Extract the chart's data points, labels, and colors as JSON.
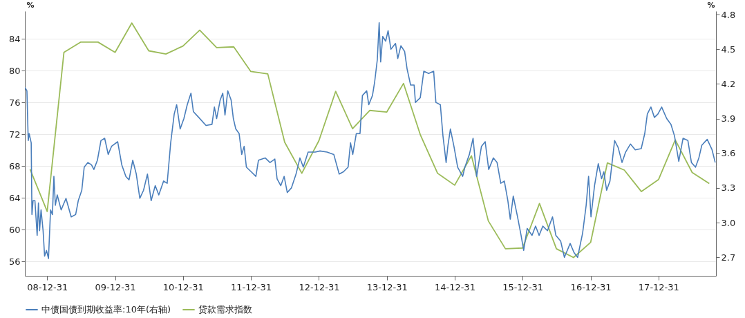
{
  "chart_data": {
    "type": "line",
    "ylabel": "%",
    "y2label": "%",
    "xlim": [
      "2008-09-02",
      "2018-11-05"
    ],
    "xticks": [
      {
        "value": "2008-12-31",
        "label": "08-12-31"
      },
      {
        "value": "2009-12-31",
        "label": "09-12-31"
      },
      {
        "value": "2010-12-31",
        "label": "10-12-31"
      },
      {
        "value": "2011-12-31",
        "label": "11-12-31"
      },
      {
        "value": "2012-12-31",
        "label": "12-12-31"
      },
      {
        "value": "2013-12-31",
        "label": "13-12-31"
      },
      {
        "value": "2014-12-31",
        "label": "14-12-31"
      },
      {
        "value": "2015-12-31",
        "label": "15-12-31"
      },
      {
        "value": "2016-12-31",
        "label": "16-12-31"
      },
      {
        "value": "2017-12-31",
        "label": "17-12-31"
      }
    ],
    "ylim": [
      54.2,
      87.5
    ],
    "yticks": [
      56,
      60,
      64,
      68,
      72,
      76,
      80,
      84
    ],
    "y2lim": [
      2.54,
      4.83
    ],
    "y2ticks": [
      2.7,
      {
        "value": 3,
        "label": "3.0"
      },
      3.3,
      3.6,
      3.9,
      4.2,
      4.5,
      4.8
    ],
    "grid": "y",
    "legend": "bottom",
    "series": [
      {
        "name": "中债国债到期收益率:10年(右轴)",
        "color": "#4a7ebb",
        "axis": "y2",
        "x": [
          "2008-09-02",
          "2008-09-13",
          "2008-09-20",
          "2008-09-25",
          "2008-10-06",
          "2008-10-10",
          "2008-10-16",
          "2008-10-26",
          "2008-11-07",
          "2008-11-14",
          "2008-11-20",
          "2008-11-28",
          "2008-12-09",
          "2008-12-17",
          "2008-12-27",
          "2009-01-07",
          "2009-01-18",
          "2009-01-28",
          "2009-02-05",
          "2009-02-13",
          "2009-02-23",
          "2009-03-16",
          "2009-04-11",
          "2009-05-09",
          "2009-06-02",
          "2009-06-16",
          "2009-07-05",
          "2009-07-18",
          "2009-08-07",
          "2009-08-26",
          "2009-09-08",
          "2009-09-27",
          "2009-10-16",
          "2009-11-05",
          "2009-11-24",
          "2009-12-12",
          "2010-01-14",
          "2010-02-05",
          "2010-02-27",
          "2010-03-16",
          "2010-04-05",
          "2010-04-24",
          "2010-05-13",
          "2010-06-02",
          "2010-06-23",
          "2010-07-13",
          "2010-08-04",
          "2010-08-23",
          "2010-09-18",
          "2010-10-07",
          "2010-10-26",
          "2010-11-14",
          "2010-11-27",
          "2010-12-16",
          "2011-01-05",
          "2011-01-23",
          "2011-02-12",
          "2011-02-25",
          "2011-03-26",
          "2011-05-04",
          "2011-06-05",
          "2011-06-18",
          "2011-06-30",
          "2011-07-19",
          "2011-08-02",
          "2011-08-14",
          "2011-08-29",
          "2011-09-16",
          "2011-09-28",
          "2011-10-11",
          "2011-10-29",
          "2011-11-12",
          "2011-11-25",
          "2011-12-07",
          "2012-01-02",
          "2012-01-27",
          "2012-02-10",
          "2012-03-17",
          "2012-04-12",
          "2012-05-08",
          "2012-05-20",
          "2012-06-09",
          "2012-06-27",
          "2012-07-14",
          "2012-08-05",
          "2012-08-30",
          "2012-09-20",
          "2012-10-08",
          "2012-11-03",
          "2012-12-11",
          "2013-01-06",
          "2013-02-13",
          "2013-03-21",
          "2013-04-19",
          "2013-05-12",
          "2013-06-06",
          "2013-06-19",
          "2013-07-01",
          "2013-07-20",
          "2013-08-09",
          "2013-08-22",
          "2013-09-14",
          "2013-09-25",
          "2013-10-15",
          "2013-10-27",
          "2013-11-10",
          "2013-11-20",
          "2013-11-28",
          "2013-12-09",
          "2013-12-25",
          "2014-01-07",
          "2014-01-22",
          "2014-02-16",
          "2014-02-28",
          "2014-03-17",
          "2014-04-06",
          "2014-04-19",
          "2014-05-08",
          "2014-05-27",
          "2014-06-03",
          "2014-06-29",
          "2014-07-18",
          "2014-08-13",
          "2014-09-09",
          "2014-09-21",
          "2014-10-15",
          "2014-10-29",
          "2014-11-15",
          "2014-11-25",
          "2014-12-08",
          "2014-12-27",
          "2015-01-16",
          "2015-02-12",
          "2015-02-24",
          "2015-03-20",
          "2015-04-09",
          "2015-04-28",
          "2015-05-24",
          "2015-06-13",
          "2015-07-02",
          "2015-07-27",
          "2015-08-16",
          "2015-09-05",
          "2015-09-24",
          "2015-10-13",
          "2015-10-26",
          "2015-11-11",
          "2015-12-04",
          "2015-12-23",
          "2016-01-06",
          "2016-01-25",
          "2016-02-20",
          "2016-03-10",
          "2016-03-29",
          "2016-04-18",
          "2016-05-13",
          "2016-06-09",
          "2016-06-27",
          "2016-07-23",
          "2016-08-12",
          "2016-09-12",
          "2016-10-03",
          "2016-10-22",
          "2016-11-18",
          "2016-12-07",
          "2016-12-20",
          "2017-01-02",
          "2017-01-21",
          "2017-02-10",
          "2017-02-28",
          "2017-03-12",
          "2017-03-27",
          "2017-04-14",
          "2017-05-09",
          "2017-05-28",
          "2017-06-18",
          "2017-07-07",
          "2017-08-02",
          "2017-08-28",
          "2017-09-29",
          "2017-10-18",
          "2017-11-01",
          "2017-11-20",
          "2017-12-09",
          "2017-12-28",
          "2018-01-17",
          "2018-02-13",
          "2018-03-08",
          "2018-03-27",
          "2018-04-19",
          "2018-05-12",
          "2018-06-07",
          "2018-06-26",
          "2018-07-18",
          "2018-08-05",
          "2018-08-21",
          "2018-09-19",
          "2018-10-15",
          "2018-11-01"
        ],
        "values": [
          4.17,
          4.14,
          3.71,
          3.77,
          3.69,
          3.07,
          3.19,
          3.19,
          2.89,
          3.17,
          2.93,
          3.11,
          2.93,
          2.71,
          2.76,
          2.69,
          3.11,
          3.07,
          3.4,
          3.15,
          3.24,
          3.11,
          3.21,
          3.05,
          3.07,
          3.19,
          3.28,
          3.48,
          3.52,
          3.5,
          3.46,
          3.54,
          3.71,
          3.73,
          3.59,
          3.66,
          3.7,
          3.5,
          3.4,
          3.37,
          3.54,
          3.42,
          3.21,
          3.28,
          3.42,
          3.19,
          3.32,
          3.24,
          3.36,
          3.34,
          3.69,
          3.94,
          4.02,
          3.81,
          3.9,
          4.02,
          4.12,
          3.96,
          3.91,
          3.84,
          3.85,
          4.0,
          3.9,
          4.06,
          4.12,
          3.93,
          4.14,
          4.06,
          3.9,
          3.81,
          3.77,
          3.59,
          3.66,
          3.48,
          3.44,
          3.4,
          3.54,
          3.56,
          3.52,
          3.55,
          3.38,
          3.32,
          3.4,
          3.26,
          3.3,
          3.42,
          3.56,
          3.48,
          3.61,
          3.61,
          3.62,
          3.61,
          3.59,
          3.42,
          3.44,
          3.48,
          3.69,
          3.59,
          3.77,
          3.77,
          4.1,
          4.14,
          4.02,
          4.1,
          4.22,
          4.41,
          4.73,
          4.39,
          4.61,
          4.57,
          4.66,
          4.5,
          4.55,
          4.42,
          4.53,
          4.48,
          4.33,
          4.19,
          4.19,
          4.04,
          4.08,
          4.31,
          4.29,
          4.31,
          4.04,
          4.02,
          3.75,
          3.52,
          3.67,
          3.81,
          3.66,
          3.48,
          3.4,
          3.48,
          3.59,
          3.73,
          3.4,
          3.66,
          3.7,
          3.46,
          3.56,
          3.52,
          3.34,
          3.36,
          3.19,
          3.03,
          3.23,
          3.05,
          2.89,
          2.76,
          2.95,
          2.89,
          2.97,
          2.89,
          2.97,
          2.93,
          3.05,
          2.89,
          2.84,
          2.7,
          2.82,
          2.74,
          2.7,
          2.91,
          3.15,
          3.4,
          3.05,
          3.32,
          3.51,
          3.38,
          3.44,
          3.28,
          3.36,
          3.71,
          3.65,
          3.52,
          3.61,
          3.68,
          3.63,
          3.64,
          3.77,
          3.94,
          4.0,
          3.91,
          3.94,
          4.0,
          3.9,
          3.85,
          3.75,
          3.53,
          3.73,
          3.71,
          3.52,
          3.48,
          3.56,
          3.67,
          3.72,
          3.63,
          3.52
        ]
      },
      {
        "name": "贷款需求指数",
        "color": "#9bbb59",
        "x": [
          "2008-09-30",
          "2008-12-31",
          "2009-03-31",
          "2009-06-30",
          "2009-09-30",
          "2009-12-31",
          "2010-03-31",
          "2010-06-30",
          "2010-09-30",
          "2010-12-31",
          "2011-03-31",
          "2011-06-30",
          "2011-09-30",
          "2011-12-31",
          "2012-03-31",
          "2012-06-30",
          "2012-09-30",
          "2012-12-31",
          "2013-03-31",
          "2013-06-30",
          "2013-09-30",
          "2013-12-31",
          "2014-03-31",
          "2014-06-30",
          "2014-09-30",
          "2014-12-31",
          "2015-03-31",
          "2015-06-30",
          "2015-09-30",
          "2015-12-31",
          "2016-03-31",
          "2016-06-30",
          "2016-09-30",
          "2016-12-31",
          "2017-03-31",
          "2017-06-30",
          "2017-09-30",
          "2017-12-31",
          "2018-03-31",
          "2018-06-30",
          "2018-09-30"
        ],
        "values": [
          67.6,
          62.3,
          82.3,
          83.6,
          83.6,
          82.3,
          86.0,
          82.5,
          82.1,
          83.1,
          85.1,
          82.9,
          83.0,
          79.9,
          79.6,
          71.0,
          67.1,
          71.2,
          77.4,
          72.7,
          75.0,
          74.8,
          78.4,
          71.9,
          67.1,
          65.6,
          69.3,
          61.1,
          57.6,
          57.7,
          63.3,
          57.6,
          56.5,
          58.4,
          68.4,
          67.5,
          64.8,
          66.3,
          71.3,
          67.2,
          65.8
        ]
      }
    ]
  }
}
